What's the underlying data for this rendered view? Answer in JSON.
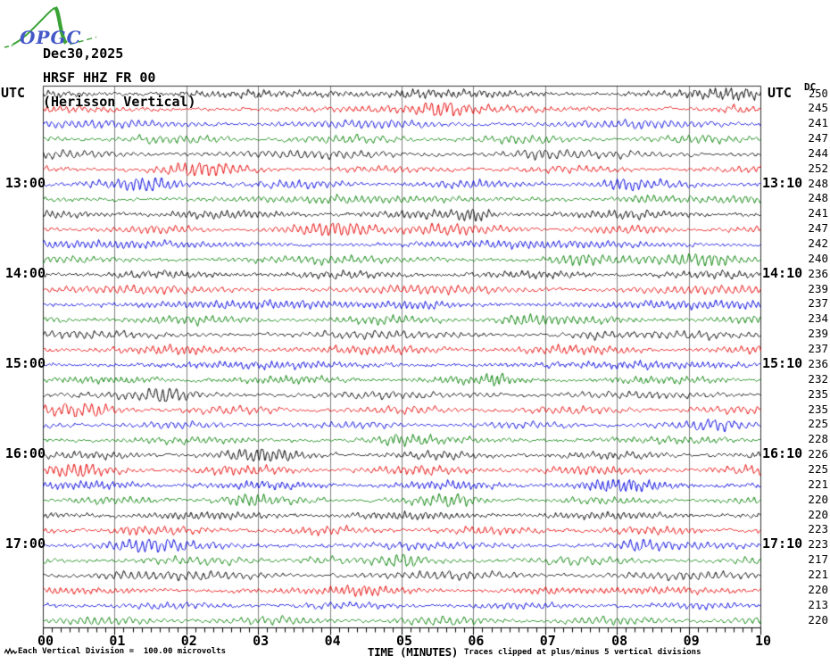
{
  "logo": {
    "text": "OPGC"
  },
  "header": {
    "date": "Dec30,2025",
    "station": "HRSF HHZ FR 00",
    "subtitle": "(Herisson Vertical)"
  },
  "axes": {
    "left_utc": "UTC",
    "right_utc": "UTC",
    "dc_label": "DC",
    "dc_value": "250"
  },
  "footer": {
    "scale_text": "Each Vertical Division =  100.00 microvolts",
    "xlabel": "TIME (MINUTES)",
    "clip_text": "Traces clipped at plus/minus 5 vertical divisions"
  },
  "colors": {
    "black": "#000000",
    "red": "#e60000",
    "blue": "#0000dd",
    "green": "#007f00",
    "grid": "#808080",
    "border": "#303030",
    "axis": "#000000",
    "logo_green": "#3aa336",
    "logo_blue": "#4558c8"
  },
  "chart_data": {
    "type": "line",
    "subtype": "helicorder-seismogram",
    "title": "Dec30,2025 HRSF HHZ FR 00 (Herisson Vertical)",
    "xlabel": "TIME (MINUTES)",
    "ylabel_left": "UTC",
    "ylabel_right": "UTC",
    "x_ticks": [
      "00",
      "01",
      "02",
      "03",
      "04",
      "05",
      "06",
      "07",
      "08",
      "09",
      "10"
    ],
    "minutes_per_row": 10,
    "minor_divisions_per_minute": 8,
    "scale_note": "Each Vertical Division =  100.00 microvolts",
    "clip_note": "Traces clipped at plus/minus 5 vertical divisions",
    "waveform_note": "continuous microseismic background noise, no readable discrete values; DC offset per row given in dc",
    "rows": [
      {
        "color": "black",
        "dc": "",
        "left": "",
        "right": ""
      },
      {
        "color": "red",
        "dc": "245",
        "left": "",
        "right": ""
      },
      {
        "color": "blue",
        "dc": "241",
        "left": "",
        "right": ""
      },
      {
        "color": "green",
        "dc": "247",
        "left": "",
        "right": ""
      },
      {
        "color": "black",
        "dc": "244",
        "left": "",
        "right": ""
      },
      {
        "color": "red",
        "dc": "252",
        "left": "",
        "right": ""
      },
      {
        "color": "blue",
        "dc": "248",
        "left": "13:00",
        "right": "13:10"
      },
      {
        "color": "green",
        "dc": "248",
        "left": "",
        "right": ""
      },
      {
        "color": "black",
        "dc": "241",
        "left": "",
        "right": ""
      },
      {
        "color": "red",
        "dc": "247",
        "left": "",
        "right": ""
      },
      {
        "color": "blue",
        "dc": "242",
        "left": "",
        "right": ""
      },
      {
        "color": "green",
        "dc": "240",
        "left": "",
        "right": ""
      },
      {
        "color": "black",
        "dc": "236",
        "left": "14:00",
        "right": "14:10"
      },
      {
        "color": "red",
        "dc": "239",
        "left": "",
        "right": ""
      },
      {
        "color": "blue",
        "dc": "237",
        "left": "",
        "right": ""
      },
      {
        "color": "green",
        "dc": "234",
        "left": "",
        "right": ""
      },
      {
        "color": "black",
        "dc": "239",
        "left": "",
        "right": ""
      },
      {
        "color": "red",
        "dc": "237",
        "left": "",
        "right": ""
      },
      {
        "color": "blue",
        "dc": "236",
        "left": "15:00",
        "right": "15:10"
      },
      {
        "color": "green",
        "dc": "232",
        "left": "",
        "right": ""
      },
      {
        "color": "black",
        "dc": "235",
        "left": "",
        "right": ""
      },
      {
        "color": "red",
        "dc": "235",
        "left": "",
        "right": ""
      },
      {
        "color": "blue",
        "dc": "225",
        "left": "",
        "right": ""
      },
      {
        "color": "green",
        "dc": "228",
        "left": "",
        "right": ""
      },
      {
        "color": "black",
        "dc": "226",
        "left": "16:00",
        "right": "16:10"
      },
      {
        "color": "red",
        "dc": "225",
        "left": "",
        "right": ""
      },
      {
        "color": "blue",
        "dc": "221",
        "left": "",
        "right": ""
      },
      {
        "color": "green",
        "dc": "220",
        "left": "",
        "right": ""
      },
      {
        "color": "black",
        "dc": "220",
        "left": "",
        "right": ""
      },
      {
        "color": "red",
        "dc": "223",
        "left": "",
        "right": ""
      },
      {
        "color": "blue",
        "dc": "223",
        "left": "17:00",
        "right": "17:10"
      },
      {
        "color": "green",
        "dc": "217",
        "left": "",
        "right": ""
      },
      {
        "color": "black",
        "dc": "221",
        "left": "",
        "right": ""
      },
      {
        "color": "red",
        "dc": "220",
        "left": "",
        "right": ""
      },
      {
        "color": "blue",
        "dc": "213",
        "left": "",
        "right": ""
      },
      {
        "color": "green",
        "dc": "220",
        "left": "",
        "right": ""
      }
    ]
  }
}
